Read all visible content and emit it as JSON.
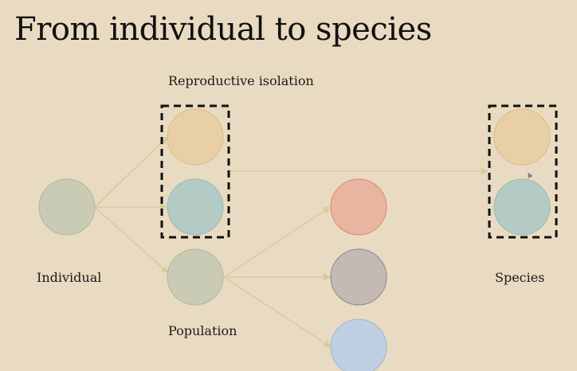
{
  "slide": {
    "title": "From individual to species",
    "labels": {
      "reproductive_isolation": "Reproductive isolation",
      "individual": "Individual",
      "population": "Population",
      "species": "Species"
    }
  },
  "colors": {
    "background": "#e9dbc1",
    "connector": "#d6cc9c",
    "dashed_border": "#111111",
    "individual": "#c9cbb4",
    "tan": "#e8cfa6",
    "teal": "#b3cbc4",
    "population": "#c9cbb4",
    "salmon": "#e8b5a1",
    "gray": "#c3bab6",
    "blue": "#bed0e2"
  }
}
